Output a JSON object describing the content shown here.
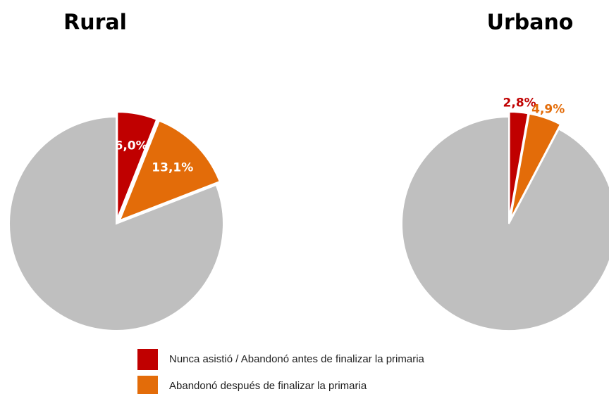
{
  "chart_data": [
    {
      "type": "pie",
      "title": "Rural",
      "values": [
        6.0,
        13.1,
        80.9
      ],
      "value_labels": [
        "6,0%",
        "13,1%",
        null
      ],
      "colors": [
        "#c00000",
        "#e36c09",
        "#bfbfbf"
      ],
      "label_position": "inside"
    },
    {
      "type": "pie",
      "title": "Urbano",
      "values": [
        2.8,
        4.9,
        92.3
      ],
      "value_labels": [
        "2,8%",
        "4,9%",
        null
      ],
      "colors": [
        "#c00000",
        "#e36c09",
        "#bfbfbf"
      ],
      "label_position": "outside"
    }
  ],
  "legend": [
    {
      "label": "Nunca asistió / Abandonó antes de finalizar la primaria",
      "color": "#c00000"
    },
    {
      "label": "Abandonó después de finalizar la primaria",
      "color": "#e36c09"
    }
  ]
}
